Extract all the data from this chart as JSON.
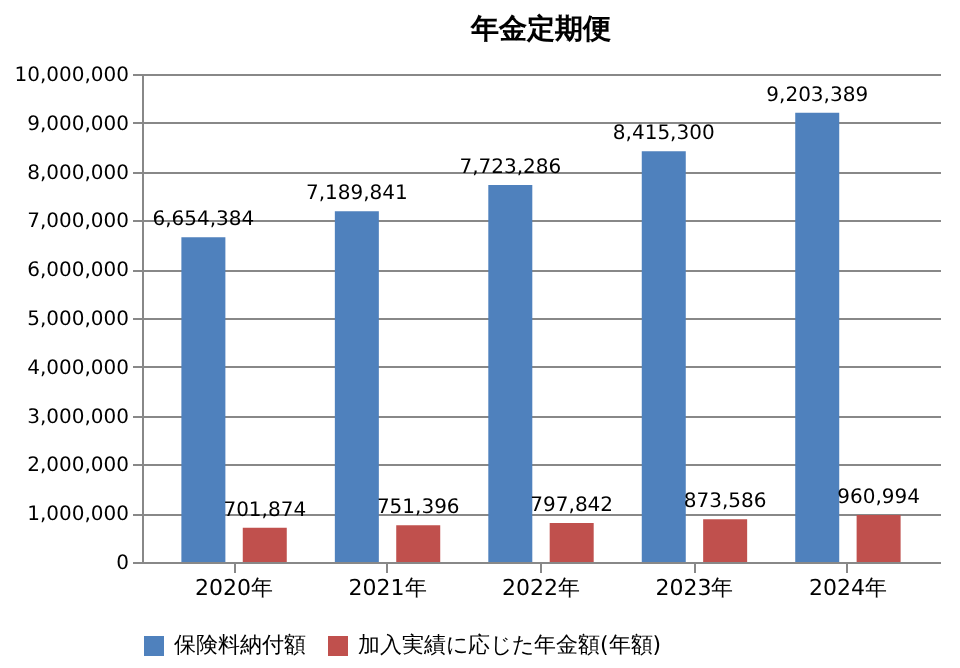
{
  "chart_data": {
    "type": "bar",
    "title": "年金定期便",
    "categories": [
      "2020年",
      "2021年",
      "2022年",
      "2023年",
      "2024年"
    ],
    "series": [
      {
        "name": "保険料納付額",
        "color": "#4f81bd",
        "values": [
          6654384,
          7189841,
          7723286,
          8415300,
          9203389
        ],
        "value_labels": [
          "6,654,384",
          "7,189,841",
          "7,723,286",
          "8,415,300",
          "9,203,389"
        ]
      },
      {
        "name": "加入実績に応じた年金額(年額)",
        "color": "#c0504d",
        "values": [
          701874,
          751396,
          797842,
          873586,
          960994
        ],
        "value_labels": [
          "701,874",
          "751,396",
          "797,842",
          "873,586",
          "960,994"
        ]
      }
    ],
    "ylim": [
      0,
      10000000
    ],
    "yticks": [
      {
        "value": 0,
        "label": "0"
      },
      {
        "value": 1000000,
        "label": "1,000,000"
      },
      {
        "value": 2000000,
        "label": "2,000,000"
      },
      {
        "value": 3000000,
        "label": "3,000,000"
      },
      {
        "value": 4000000,
        "label": "4,000,000"
      },
      {
        "value": 5000000,
        "label": "5,000,000"
      },
      {
        "value": 6000000,
        "label": "6,000,000"
      },
      {
        "value": 7000000,
        "label": "7,000,000"
      },
      {
        "value": 8000000,
        "label": "8,000,000"
      },
      {
        "value": 9000000,
        "label": "9,000,000"
      },
      {
        "value": 10000000,
        "label": "10,000,000"
      }
    ],
    "grid": "y",
    "legend": "bottom"
  }
}
